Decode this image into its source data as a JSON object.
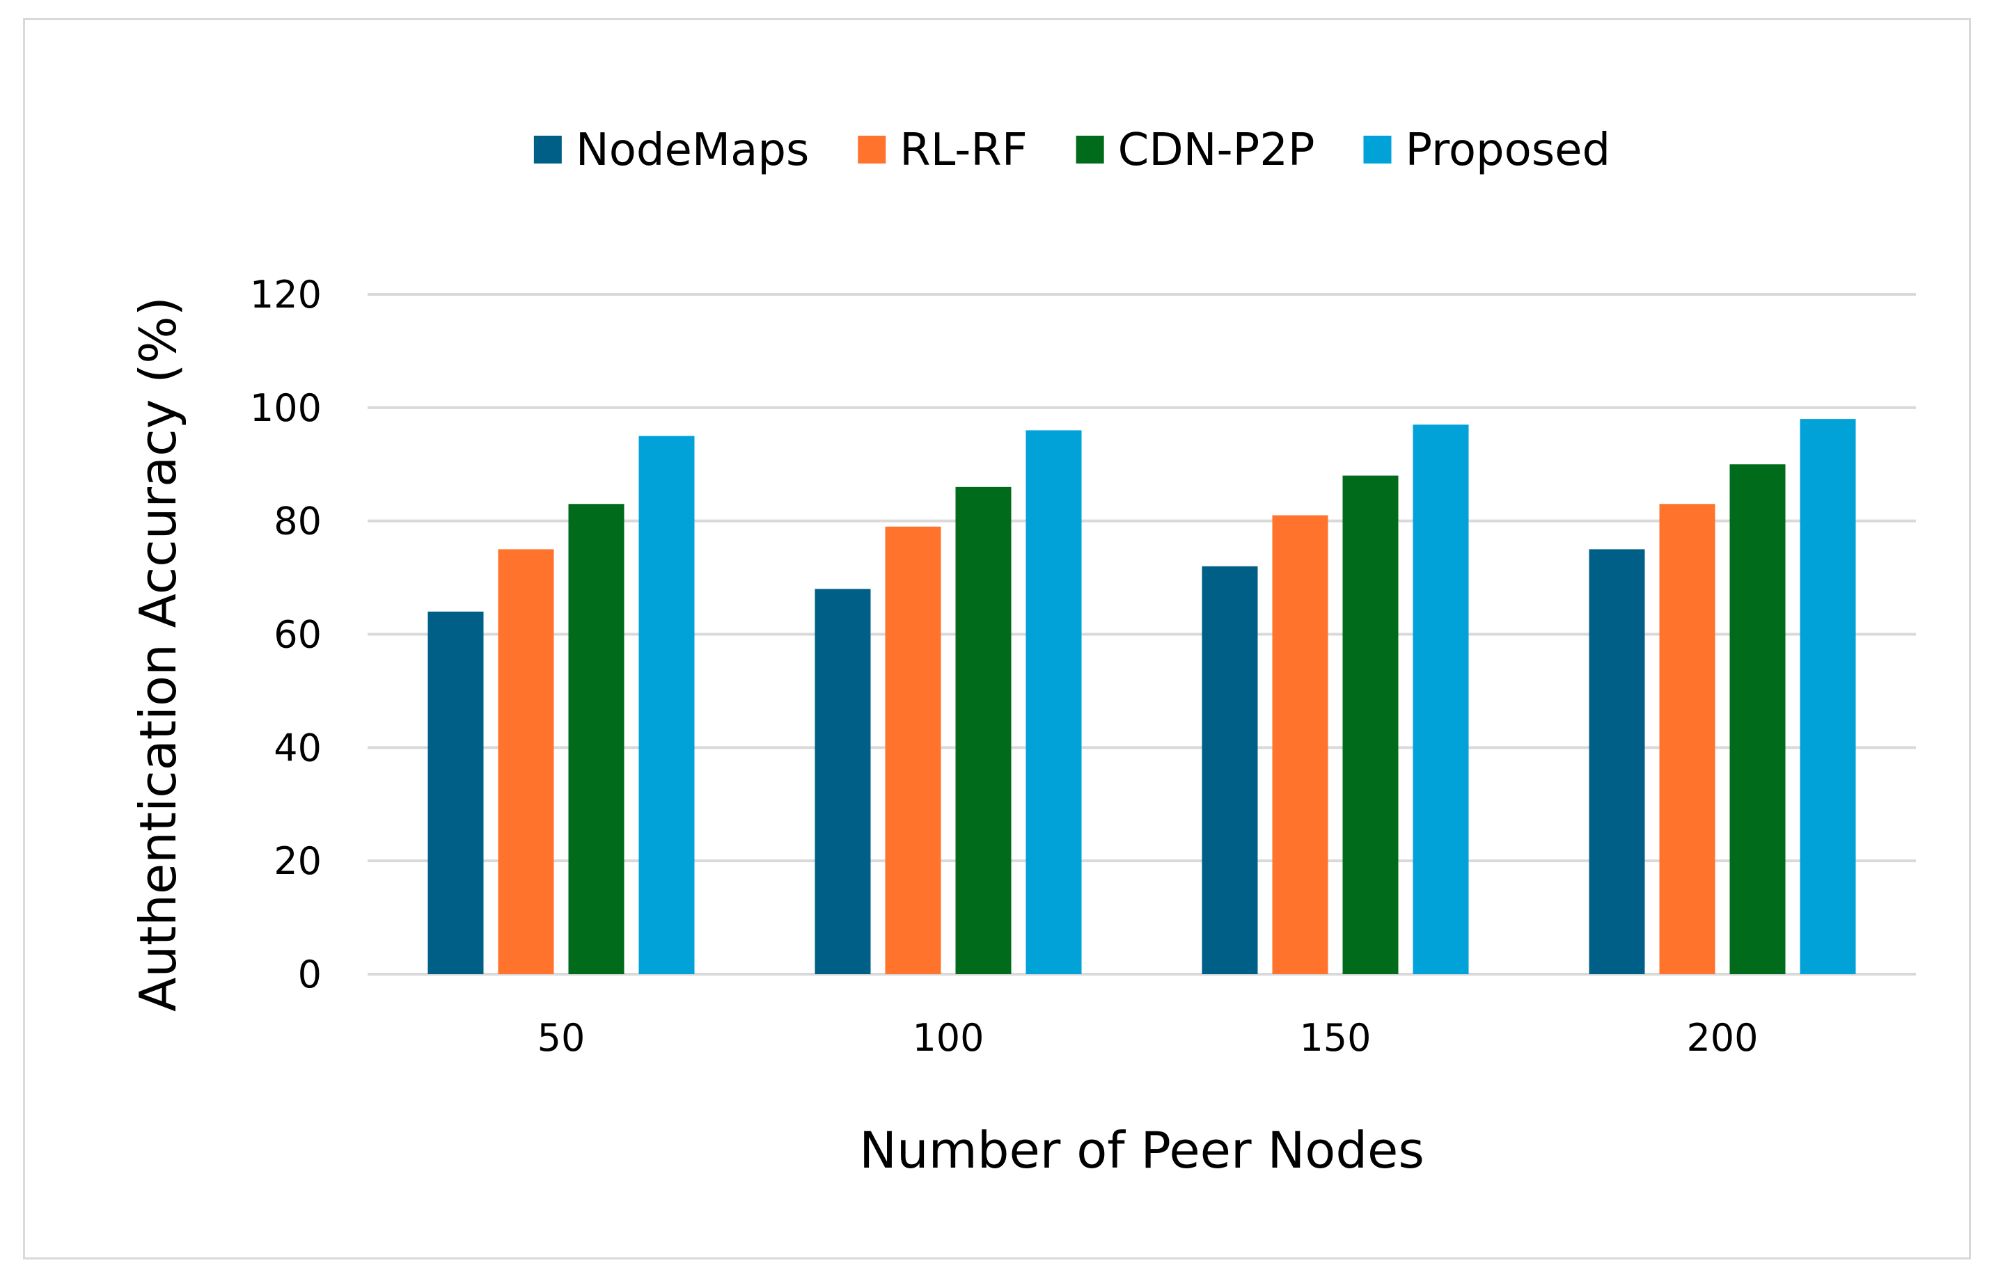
{
  "chart_data": {
    "type": "bar",
    "title": "",
    "xlabel": "Number of Peer Nodes",
    "ylabel": "Authentication Accuracy (%)",
    "categories": [
      "50",
      "100",
      "150",
      "200"
    ],
    "ylim": [
      0,
      120
    ],
    "yticks": [
      0,
      20,
      40,
      60,
      80,
      100,
      120
    ],
    "grid": "horizontal",
    "legend_position": "top",
    "series": [
      {
        "name": "NodeMaps",
        "color": "#005f87",
        "values": [
          64,
          68,
          72,
          75
        ]
      },
      {
        "name": "RL-RF",
        "color": "#ff732d",
        "values": [
          75,
          79,
          81,
          83
        ]
      },
      {
        "name": "CDN-P2P",
        "color": "#006b1a",
        "values": [
          83,
          86,
          88,
          90
        ]
      },
      {
        "name": "Proposed",
        "color": "#00a2d8",
        "values": [
          95,
          96,
          97,
          98
        ]
      }
    ]
  }
}
